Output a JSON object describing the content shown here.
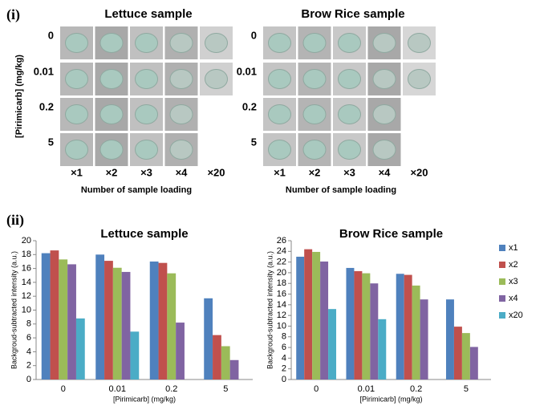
{
  "panel_i": {
    "label": "(i)",
    "titles": [
      "Lettuce sample",
      "Brow Rice sample"
    ],
    "row_labels": [
      "0",
      "0.01",
      "0.2",
      "5"
    ],
    "y_label": "[Pirimicarb] (mg/kg)",
    "column_labels": [
      "×1",
      "×2",
      "×3",
      "×4",
      "×20"
    ],
    "x_label": "Number of sample loading"
  },
  "panel_ii": {
    "label": "(ii)"
  },
  "chart_data": [
    {
      "type": "bar",
      "title": "Lettuce sample",
      "x_label": "[Pirimicarb] (mg/kg)",
      "y_label": "Backgroud-subtracted intensity (a.u.)",
      "categories": [
        "0",
        "0.01",
        "0.2",
        "5"
      ],
      "series": [
        {
          "name": "x1",
          "color": "#4f81bd",
          "values": [
            18.2,
            18.0,
            17.0,
            11.7
          ]
        },
        {
          "name": "x2",
          "color": "#c0504d",
          "values": [
            18.6,
            17.1,
            16.8,
            6.4
          ]
        },
        {
          "name": "x3",
          "color": "#9bbb59",
          "values": [
            17.3,
            16.1,
            15.3,
            4.8
          ]
        },
        {
          "name": "x4",
          "color": "#8064a2",
          "values": [
            16.6,
            15.5,
            8.2,
            2.8
          ]
        },
        {
          "name": "x20",
          "color": "#4bacc6",
          "values": [
            8.8,
            6.9,
            null,
            null
          ]
        }
      ],
      "ylim": [
        0,
        20
      ],
      "yticks": [
        0,
        2,
        4,
        6,
        8,
        10,
        12,
        14,
        16,
        18,
        20
      ]
    },
    {
      "type": "bar",
      "title": "Brow Rice sample",
      "x_label": "[Pirimicarb] (mg/kg)",
      "y_label": "Backgroud-subtracted intensity (a.u.)",
      "categories": [
        "0",
        "0.01",
        "0.2",
        "5"
      ],
      "series": [
        {
          "name": "x1",
          "color": "#4f81bd",
          "values": [
            23.0,
            20.9,
            19.8,
            15.0
          ]
        },
        {
          "name": "x2",
          "color": "#c0504d",
          "values": [
            24.4,
            20.3,
            19.6,
            9.9
          ]
        },
        {
          "name": "x3",
          "color": "#9bbb59",
          "values": [
            23.9,
            19.9,
            17.6,
            8.7
          ]
        },
        {
          "name": "x4",
          "color": "#8064a2",
          "values": [
            22.1,
            18.0,
            15.0,
            6.1
          ]
        },
        {
          "name": "x20",
          "color": "#4bacc6",
          "values": [
            13.2,
            11.3,
            null,
            null
          ]
        }
      ],
      "ylim": [
        0,
        26
      ],
      "yticks": [
        0,
        2,
        4,
        6,
        8,
        10,
        12,
        14,
        16,
        18,
        20,
        22,
        24,
        26
      ],
      "legend": "right"
    }
  ]
}
